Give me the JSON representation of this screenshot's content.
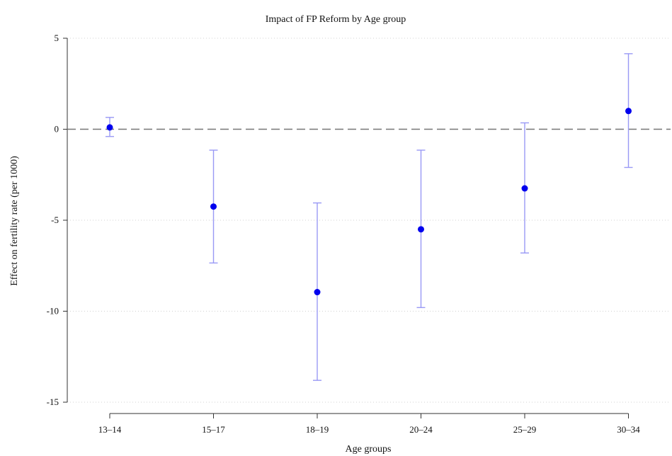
{
  "chart_data": {
    "type": "scatter",
    "title": "Impact of FP Reform by Age group",
    "xlabel": "Age groups",
    "ylabel": "Effect on fertility rate (per 1000)",
    "categories": [
      "13–14",
      "15–17",
      "18–19",
      "20–24",
      "25–29",
      "30–34"
    ],
    "series": [
      {
        "values": [
          0.1,
          -4.25,
          -8.95,
          -5.5,
          -3.25,
          1.0
        ],
        "ci_lower": [
          -0.4,
          -7.35,
          -13.8,
          -9.8,
          -6.8,
          -2.1
        ],
        "ci_upper": [
          0.65,
          -1.15,
          -4.05,
          -1.15,
          0.35,
          4.15
        ]
      }
    ],
    "ylim": [
      -15,
      5
    ],
    "yticks": [
      5,
      0,
      -5,
      -10,
      -15
    ],
    "ytick_labels": [
      "5",
      "0",
      "-5",
      "-10",
      "-15"
    ],
    "reference_line": 0,
    "grid": true,
    "colors": {
      "point": "#0000ee",
      "ci": "#9999f5",
      "reference": "#777777",
      "grid": "#d0d0d0"
    }
  }
}
